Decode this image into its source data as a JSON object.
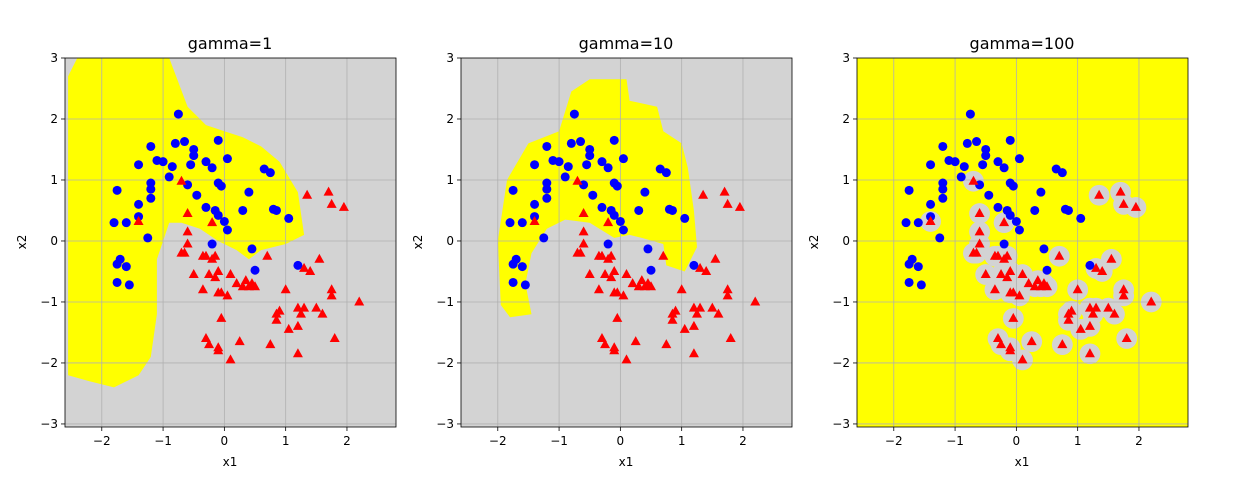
{
  "colors": {
    "class_a_region": "#ffff00",
    "class_b_region": "#d3d3d3",
    "class_a_points": "#0000ff",
    "class_b_points": "#ff0000",
    "grid": "#b0b0b0"
  },
  "chart_data": [
    {
      "type": "scatter",
      "title": "gamma=1",
      "xlabel": "x1",
      "ylabel": "x2",
      "xlim": [
        -2.6,
        2.8
      ],
      "ylim": [
        -3.05,
        3.0
      ],
      "xticks": [
        -2,
        -1,
        0,
        1,
        2
      ],
      "yticks": [
        -3,
        -2,
        -1,
        0,
        1,
        2,
        3
      ],
      "grid": true,
      "background_class": "b",
      "region_a": [
        [
          -2.55,
          2.7
        ],
        [
          -2.4,
          3.0
        ],
        [
          -0.9,
          3.0
        ],
        [
          -0.6,
          2.2
        ],
        [
          -0.3,
          1.9
        ],
        [
          0.0,
          1.8
        ],
        [
          0.3,
          1.7
        ],
        [
          0.6,
          1.55
        ],
        [
          0.9,
          1.3
        ],
        [
          1.2,
          0.8
        ],
        [
          1.3,
          0.1
        ],
        [
          1.0,
          -0.05
        ],
        [
          0.6,
          -0.15
        ],
        [
          0.4,
          -0.3
        ],
        [
          0.2,
          -0.15
        ],
        [
          -0.1,
          0.0
        ],
        [
          -0.4,
          0.2
        ],
        [
          -0.7,
          0.3
        ],
        [
          -0.9,
          0.3
        ],
        [
          -1.0,
          0.0
        ],
        [
          -1.1,
          -0.3
        ],
        [
          -1.1,
          -1.2
        ],
        [
          -1.2,
          -1.9
        ],
        [
          -1.4,
          -2.2
        ],
        [
          -1.8,
          -2.4
        ],
        [
          -2.2,
          -2.3
        ],
        [
          -2.55,
          -2.2
        ]
      ]
    },
    {
      "type": "scatter",
      "title": "gamma=10",
      "xlabel": "x1",
      "ylabel": "x2",
      "xlim": [
        -2.6,
        2.8
      ],
      "ylim": [
        -3.05,
        3.0
      ],
      "xticks": [
        -2,
        -1,
        0,
        1,
        2
      ],
      "yticks": [
        -3,
        -2,
        -1,
        0,
        1,
        2,
        3
      ],
      "grid": true,
      "background_class": "b",
      "region_a": [
        [
          -1.95,
          -1.05
        ],
        [
          -2.0,
          0.0
        ],
        [
          -1.85,
          1.0
        ],
        [
          -1.5,
          1.6
        ],
        [
          -1.0,
          1.8
        ],
        [
          -0.8,
          2.45
        ],
        [
          -0.5,
          2.65
        ],
        [
          0.1,
          2.65
        ],
        [
          0.15,
          2.3
        ],
        [
          0.6,
          2.2
        ],
        [
          0.7,
          1.8
        ],
        [
          1.0,
          1.6
        ],
        [
          1.1,
          1.2
        ],
        [
          1.2,
          0.5
        ],
        [
          1.25,
          -0.1
        ],
        [
          1.05,
          -0.5
        ],
        [
          0.75,
          -0.4
        ],
        [
          0.7,
          -0.05
        ],
        [
          0.35,
          0.05
        ],
        [
          0.15,
          0.1
        ],
        [
          -0.1,
          0.05
        ],
        [
          -0.5,
          0.3
        ],
        [
          -0.9,
          0.35
        ],
        [
          -1.2,
          0.2
        ],
        [
          -1.45,
          -0.2
        ],
        [
          -1.55,
          -0.7
        ],
        [
          -1.45,
          -1.2
        ],
        [
          -1.8,
          -1.25
        ]
      ]
    },
    {
      "type": "scatter",
      "title": "gamma=100",
      "xlabel": "x1",
      "ylabel": "x2",
      "xlim": [
        -2.6,
        2.8
      ],
      "ylim": [
        -3.05,
        3.0
      ],
      "xticks": [
        -2,
        -1,
        0,
        1,
        2
      ],
      "yticks": [
        -3,
        -2,
        -1,
        0,
        1,
        2,
        3
      ],
      "grid": true,
      "background_class": "a",
      "bubble_radius": 0.17
    }
  ],
  "points": {
    "class_a": [
      [
        -0.75,
        2.08
      ],
      [
        -0.8,
        1.6
      ],
      [
        -0.65,
        1.63
      ],
      [
        -0.5,
        1.4
      ],
      [
        -0.5,
        1.5
      ],
      [
        -0.1,
        1.65
      ],
      [
        -1.2,
        1.55
      ],
      [
        -1.0,
        1.3
      ],
      [
        -1.1,
        1.32
      ],
      [
        -0.85,
        1.22
      ],
      [
        -0.55,
        1.25
      ],
      [
        -0.3,
        1.3
      ],
      [
        -0.2,
        1.2
      ],
      [
        0.05,
        1.35
      ],
      [
        -1.4,
        1.25
      ],
      [
        -0.9,
        1.05
      ],
      [
        -0.6,
        0.92
      ],
      [
        -0.1,
        0.95
      ],
      [
        -0.05,
        0.9
      ],
      [
        -1.75,
        0.83
      ],
      [
        -1.2,
        0.85
      ],
      [
        -1.2,
        0.95
      ],
      [
        -1.2,
        0.7
      ],
      [
        -1.4,
        0.6
      ],
      [
        -1.4,
        0.4
      ],
      [
        -1.8,
        0.3
      ],
      [
        -1.6,
        0.3
      ],
      [
        -1.25,
        0.05
      ],
      [
        -0.45,
        0.75
      ],
      [
        -0.3,
        0.55
      ],
      [
        -0.15,
        0.5
      ],
      [
        -0.1,
        0.42
      ],
      [
        0.0,
        0.32
      ],
      [
        0.05,
        0.18
      ],
      [
        0.3,
        0.5
      ],
      [
        0.4,
        0.8
      ],
      [
        0.65,
        1.18
      ],
      [
        0.75,
        1.12
      ],
      [
        0.8,
        0.52
      ],
      [
        0.85,
        0.5
      ],
      [
        1.05,
        0.37
      ],
      [
        -0.2,
        -0.05
      ],
      [
        0.45,
        -0.13
      ],
      [
        0.5,
        -0.48
      ],
      [
        1.2,
        -0.4
      ],
      [
        -1.7,
        -0.3
      ],
      [
        -1.75,
        -0.38
      ],
      [
        -1.6,
        -0.42
      ],
      [
        -1.75,
        -0.68
      ],
      [
        -1.55,
        -0.72
      ]
    ],
    "class_b": [
      [
        -0.7,
        0.98
      ],
      [
        -1.4,
        0.32
      ],
      [
        -0.6,
        0.45
      ],
      [
        -0.6,
        0.15
      ],
      [
        -0.2,
        0.3
      ],
      [
        -0.6,
        -0.05
      ],
      [
        -0.65,
        -0.2
      ],
      [
        -0.7,
        -0.2
      ],
      [
        -0.35,
        -0.25
      ],
      [
        -0.3,
        -0.25
      ],
      [
        -0.2,
        -0.3
      ],
      [
        -0.15,
        -0.25
      ],
      [
        -0.5,
        -0.55
      ],
      [
        -0.25,
        -0.55
      ],
      [
        -0.1,
        -0.5
      ],
      [
        -0.15,
        -0.6
      ],
      [
        0.1,
        -0.55
      ],
      [
        -0.35,
        -0.8
      ],
      [
        -0.1,
        -0.85
      ],
      [
        -0.05,
        -0.85
      ],
      [
        0.05,
        -0.9
      ],
      [
        0.2,
        -0.7
      ],
      [
        0.35,
        -0.65
      ],
      [
        0.4,
        -0.75
      ],
      [
        0.3,
        -0.75
      ],
      [
        0.45,
        -0.7
      ],
      [
        0.5,
        -0.75
      ],
      [
        0.7,
        -0.25
      ],
      [
        -0.05,
        -1.27
      ],
      [
        -0.3,
        -1.6
      ],
      [
        -0.25,
        -1.7
      ],
      [
        -0.1,
        -1.75
      ],
      [
        -0.1,
        -1.8
      ],
      [
        0.1,
        -1.95
      ],
      [
        0.25,
        -1.65
      ],
      [
        0.75,
        -1.7
      ],
      [
        0.85,
        -1.3
      ],
      [
        0.85,
        -1.2
      ],
      [
        0.9,
        -1.15
      ],
      [
        1.0,
        -0.8
      ],
      [
        1.05,
        -1.45
      ],
      [
        1.2,
        -1.1
      ],
      [
        1.2,
        -1.4
      ],
      [
        1.25,
        -1.2
      ],
      [
        1.3,
        -1.1
      ],
      [
        1.2,
        -1.85
      ],
      [
        1.3,
        -0.45
      ],
      [
        1.4,
        -0.5
      ],
      [
        1.5,
        -1.1
      ],
      [
        1.6,
        -1.2
      ],
      [
        1.55,
        -0.3
      ],
      [
        1.75,
        -0.8
      ],
      [
        1.75,
        -0.9
      ],
      [
        1.8,
        -1.6
      ],
      [
        1.35,
        0.75
      ],
      [
        1.7,
        0.8
      ],
      [
        1.75,
        0.6
      ],
      [
        1.95,
        0.55
      ],
      [
        2.2,
        -1.0
      ]
    ]
  }
}
